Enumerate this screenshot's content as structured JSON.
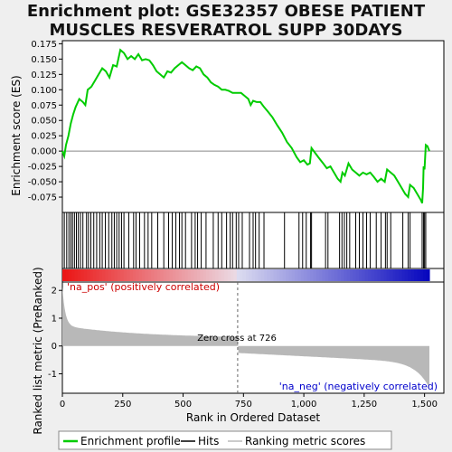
{
  "chart_data": {
    "type": "line",
    "title_line1": "Enrichment plot: GSE32357 OBESE PATIENT",
    "title_line2": "MUSCLES RESVERATROL SUPP 30DAYS",
    "xlabel": "Rank in Ordered Dataset",
    "ylabel_top": "Enrichment score (ES)",
    "ylabel_bottom": "Ranked list metric (PreRanked)",
    "xlim": [
      0,
      1580
    ],
    "ylim_es": [
      -0.1,
      0.18
    ],
    "ylim_metric": [
      -1.7,
      2.3
    ],
    "x_ticks": [
      0,
      250,
      500,
      750,
      1000,
      1250,
      1500
    ],
    "x_tick_labels": [
      "0",
      "250",
      "500",
      "750",
      "1,000",
      "1,250",
      "1,500"
    ],
    "es_ticks": [
      0.175,
      0.15,
      0.125,
      0.1,
      0.075,
      0.05,
      0.025,
      0.0,
      -0.025,
      -0.05,
      -0.075
    ],
    "es_tick_labels": [
      "0.175",
      "0.150",
      "0.125",
      "0.100",
      "0.075",
      "0.050",
      "0.025",
      "0.000",
      "-0.025",
      "-0.050",
      "-0.075"
    ],
    "metric_ticks": [
      2,
      1,
      0,
      -1
    ],
    "metric_tick_labels": [
      "2",
      "1",
      "0",
      "-1"
    ],
    "n_total": 1520,
    "zero_cross": 726,
    "zero_cross_label": "Zero cross at 726",
    "pos_label": "'na_pos' (positively correlated)",
    "neg_label": "'na_neg' (negatively correlated)",
    "es_curve": [
      [
        0,
        0.0
      ],
      [
        8,
        -0.008
      ],
      [
        15,
        0.01
      ],
      [
        25,
        0.025
      ],
      [
        35,
        0.045
      ],
      [
        45,
        0.06
      ],
      [
        55,
        0.072
      ],
      [
        70,
        0.085
      ],
      [
        85,
        0.08
      ],
      [
        95,
        0.075
      ],
      [
        105,
        0.1
      ],
      [
        120,
        0.105
      ],
      [
        135,
        0.115
      ],
      [
        150,
        0.125
      ],
      [
        165,
        0.135
      ],
      [
        180,
        0.13
      ],
      [
        195,
        0.12
      ],
      [
        210,
        0.14
      ],
      [
        225,
        0.138
      ],
      [
        240,
        0.165
      ],
      [
        255,
        0.16
      ],
      [
        270,
        0.15
      ],
      [
        285,
        0.155
      ],
      [
        300,
        0.15
      ],
      [
        315,
        0.158
      ],
      [
        330,
        0.148
      ],
      [
        345,
        0.15
      ],
      [
        360,
        0.148
      ],
      [
        375,
        0.14
      ],
      [
        390,
        0.13
      ],
      [
        405,
        0.125
      ],
      [
        420,
        0.12
      ],
      [
        435,
        0.13
      ],
      [
        450,
        0.128
      ],
      [
        465,
        0.135
      ],
      [
        480,
        0.14
      ],
      [
        495,
        0.145
      ],
      [
        510,
        0.14
      ],
      [
        525,
        0.135
      ],
      [
        540,
        0.132
      ],
      [
        555,
        0.138
      ],
      [
        570,
        0.135
      ],
      [
        585,
        0.125
      ],
      [
        600,
        0.12
      ],
      [
        615,
        0.112
      ],
      [
        630,
        0.108
      ],
      [
        645,
        0.105
      ],
      [
        660,
        0.1
      ],
      [
        675,
        0.1
      ],
      [
        690,
        0.098
      ],
      [
        705,
        0.095
      ],
      [
        720,
        0.095
      ],
      [
        740,
        0.095
      ],
      [
        755,
        0.09
      ],
      [
        770,
        0.085
      ],
      [
        780,
        0.075
      ],
      [
        790,
        0.082
      ],
      [
        805,
        0.08
      ],
      [
        820,
        0.08
      ],
      [
        835,
        0.072
      ],
      [
        850,
        0.065
      ],
      [
        870,
        0.055
      ],
      [
        890,
        0.042
      ],
      [
        910,
        0.03
      ],
      [
        930,
        0.015
      ],
      [
        950,
        0.005
      ],
      [
        970,
        -0.01
      ],
      [
        985,
        -0.018
      ],
      [
        1000,
        -0.015
      ],
      [
        1015,
        -0.022
      ],
      [
        1025,
        -0.02
      ],
      [
        1032,
        0.005
      ],
      [
        1045,
        -0.002
      ],
      [
        1060,
        -0.01
      ],
      [
        1080,
        -0.02
      ],
      [
        1095,
        -0.028
      ],
      [
        1110,
        -0.025
      ],
      [
        1125,
        -0.035
      ],
      [
        1140,
        -0.045
      ],
      [
        1152,
        -0.05
      ],
      [
        1160,
        -0.035
      ],
      [
        1170,
        -0.04
      ],
      [
        1185,
        -0.02
      ],
      [
        1200,
        -0.03
      ],
      [
        1215,
        -0.035
      ],
      [
        1230,
        -0.04
      ],
      [
        1245,
        -0.035
      ],
      [
        1260,
        -0.038
      ],
      [
        1275,
        -0.035
      ],
      [
        1290,
        -0.042
      ],
      [
        1305,
        -0.05
      ],
      [
        1320,
        -0.045
      ],
      [
        1335,
        -0.05
      ],
      [
        1345,
        -0.03
      ],
      [
        1360,
        -0.035
      ],
      [
        1375,
        -0.04
      ],
      [
        1390,
        -0.05
      ],
      [
        1405,
        -0.06
      ],
      [
        1420,
        -0.07
      ],
      [
        1432,
        -0.075
      ],
      [
        1440,
        -0.055
      ],
      [
        1455,
        -0.06
      ],
      [
        1470,
        -0.07
      ],
      [
        1485,
        -0.08
      ],
      [
        1490,
        -0.085
      ],
      [
        1494,
        -0.06
      ],
      [
        1496,
        -0.025
      ],
      [
        1500,
        -0.03
      ],
      [
        1505,
        0.01
      ],
      [
        1512,
        0.008
      ],
      [
        1520,
        0.0
      ]
    ],
    "hits": [
      8,
      18,
      27,
      35,
      42,
      50,
      58,
      66,
      75,
      85,
      100,
      108,
      118,
      130,
      142,
      155,
      165,
      178,
      192,
      205,
      215,
      225,
      235,
      245,
      255,
      275,
      295,
      305,
      320,
      340,
      355,
      370,
      395,
      420,
      440,
      455,
      470,
      485,
      495,
      510,
      535,
      550,
      560,
      575,
      595,
      625,
      645,
      660,
      680,
      695,
      705,
      720,
      730,
      745,
      775,
      790,
      800,
      815,
      835,
      920,
      980,
      995,
      1010,
      1028,
      1032,
      1090,
      1100,
      1148,
      1158,
      1168,
      1178,
      1190,
      1215,
      1230,
      1245,
      1260,
      1275,
      1300,
      1320,
      1338,
      1345,
      1360,
      1410,
      1432,
      1440,
      1490,
      1496,
      1500,
      1505
    ]
  }
}
